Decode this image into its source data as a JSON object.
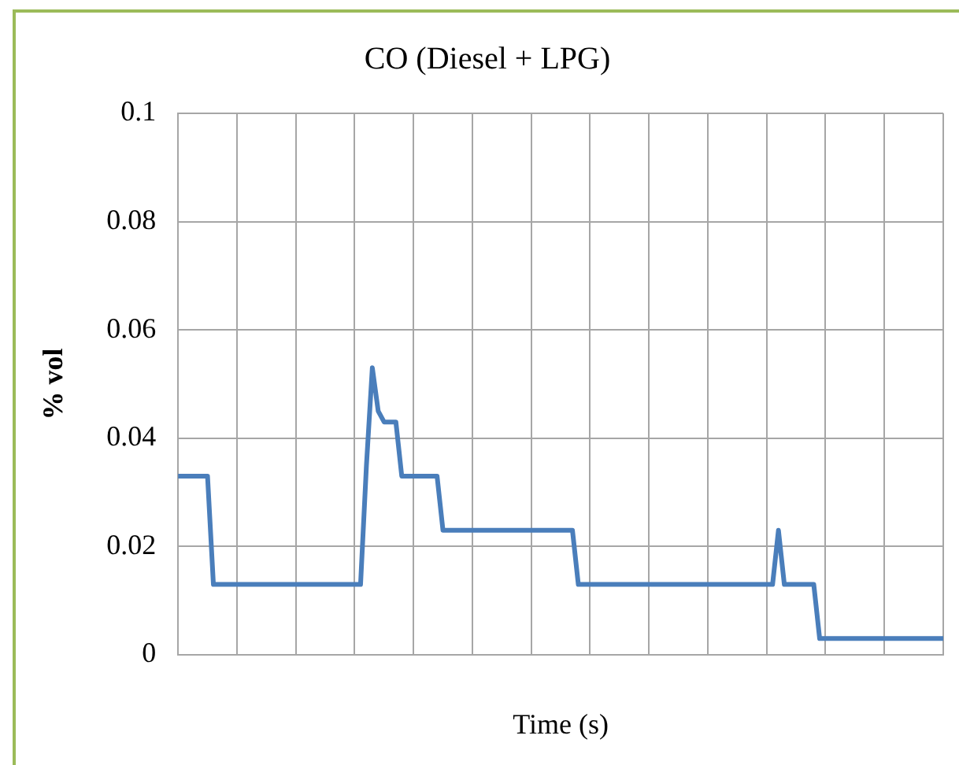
{
  "chart_data": {
    "type": "line",
    "title": "CO (Diesel + LPG)",
    "xlabel": "Time (s)",
    "ylabel": "% vol",
    "categories": [
      null,
      null,
      null,
      null,
      null,
      null,
      null,
      null,
      null,
      null,
      null,
      null,
      null,
      null,
      null,
      null,
      null,
      null,
      null,
      null,
      null,
      null,
      null,
      null,
      null,
      null,
      null,
      null,
      null,
      null,
      null,
      null,
      null,
      null,
      null,
      null,
      null,
      null,
      null,
      null,
      null,
      null,
      null,
      null,
      null,
      null,
      null,
      null,
      null,
      null,
      null,
      null,
      null,
      null,
      null,
      null,
      null,
      null,
      null,
      null,
      null,
      null,
      null,
      null,
      null,
      null,
      null,
      null,
      null,
      null,
      null,
      null,
      null,
      null,
      null,
      null,
      null,
      null,
      null,
      null,
      null,
      null,
      null,
      null,
      null,
      null,
      null,
      null,
      null,
      null,
      null,
      null,
      null,
      null,
      null,
      null,
      null,
      null,
      null,
      null,
      null,
      null,
      null,
      null,
      null,
      null,
      null,
      null,
      null,
      null,
      null,
      null,
      null,
      null,
      null,
      null,
      null,
      null,
      null,
      null,
      null,
      null,
      null,
      null,
      null,
      null,
      null,
      null,
      null,
      null,
      null
    ],
    "series": [
      {
        "color": "#4a7ebb",
        "values": [
          0.033,
          0.033,
          0.033,
          0.033,
          0.033,
          0.033,
          0.013,
          0.013,
          0.013,
          0.013,
          0.013,
          0.013,
          0.013,
          0.013,
          0.013,
          0.013,
          0.013,
          0.013,
          0.013,
          0.013,
          0.013,
          0.013,
          0.013,
          0.013,
          0.013,
          0.013,
          0.013,
          0.013,
          0.013,
          0.013,
          0.013,
          0.013,
          0.035,
          0.053,
          0.045,
          0.043,
          0.043,
          0.043,
          0.033,
          0.033,
          0.033,
          0.033,
          0.033,
          0.033,
          0.033,
          0.023,
          0.023,
          0.023,
          0.023,
          0.023,
          0.023,
          0.023,
          0.023,
          0.023,
          0.023,
          0.023,
          0.023,
          0.023,
          0.023,
          0.023,
          0.023,
          0.023,
          0.023,
          0.023,
          0.023,
          0.023,
          0.023,
          0.023,
          0.013,
          0.013,
          0.013,
          0.013,
          0.013,
          0.013,
          0.013,
          0.013,
          0.013,
          0.013,
          0.013,
          0.013,
          0.013,
          0.013,
          0.013,
          0.013,
          0.013,
          0.013,
          0.013,
          0.013,
          0.013,
          0.013,
          0.013,
          0.013,
          0.013,
          0.013,
          0.013,
          0.013,
          0.013,
          0.013,
          0.013,
          0.013,
          0.013,
          0.013,
          0.023,
          0.013,
          0.013,
          0.013,
          0.013,
          0.013,
          0.013,
          0.003,
          0.003,
          0.003,
          0.003,
          0.003,
          0.003,
          0.003,
          0.003,
          0.003,
          0.003,
          0.003,
          0.003,
          0.003,
          0.003,
          0.003,
          0.003,
          0.003,
          0.003,
          0.003,
          0.003,
          0.003,
          0.003
        ]
      }
    ],
    "ylim": [
      0,
      0.1
    ],
    "yticks": [
      0,
      0.02,
      0.04,
      0.06,
      0.08,
      0.1
    ],
    "grid": true,
    "legend": false,
    "marker": "none",
    "line_style": "solid"
  }
}
